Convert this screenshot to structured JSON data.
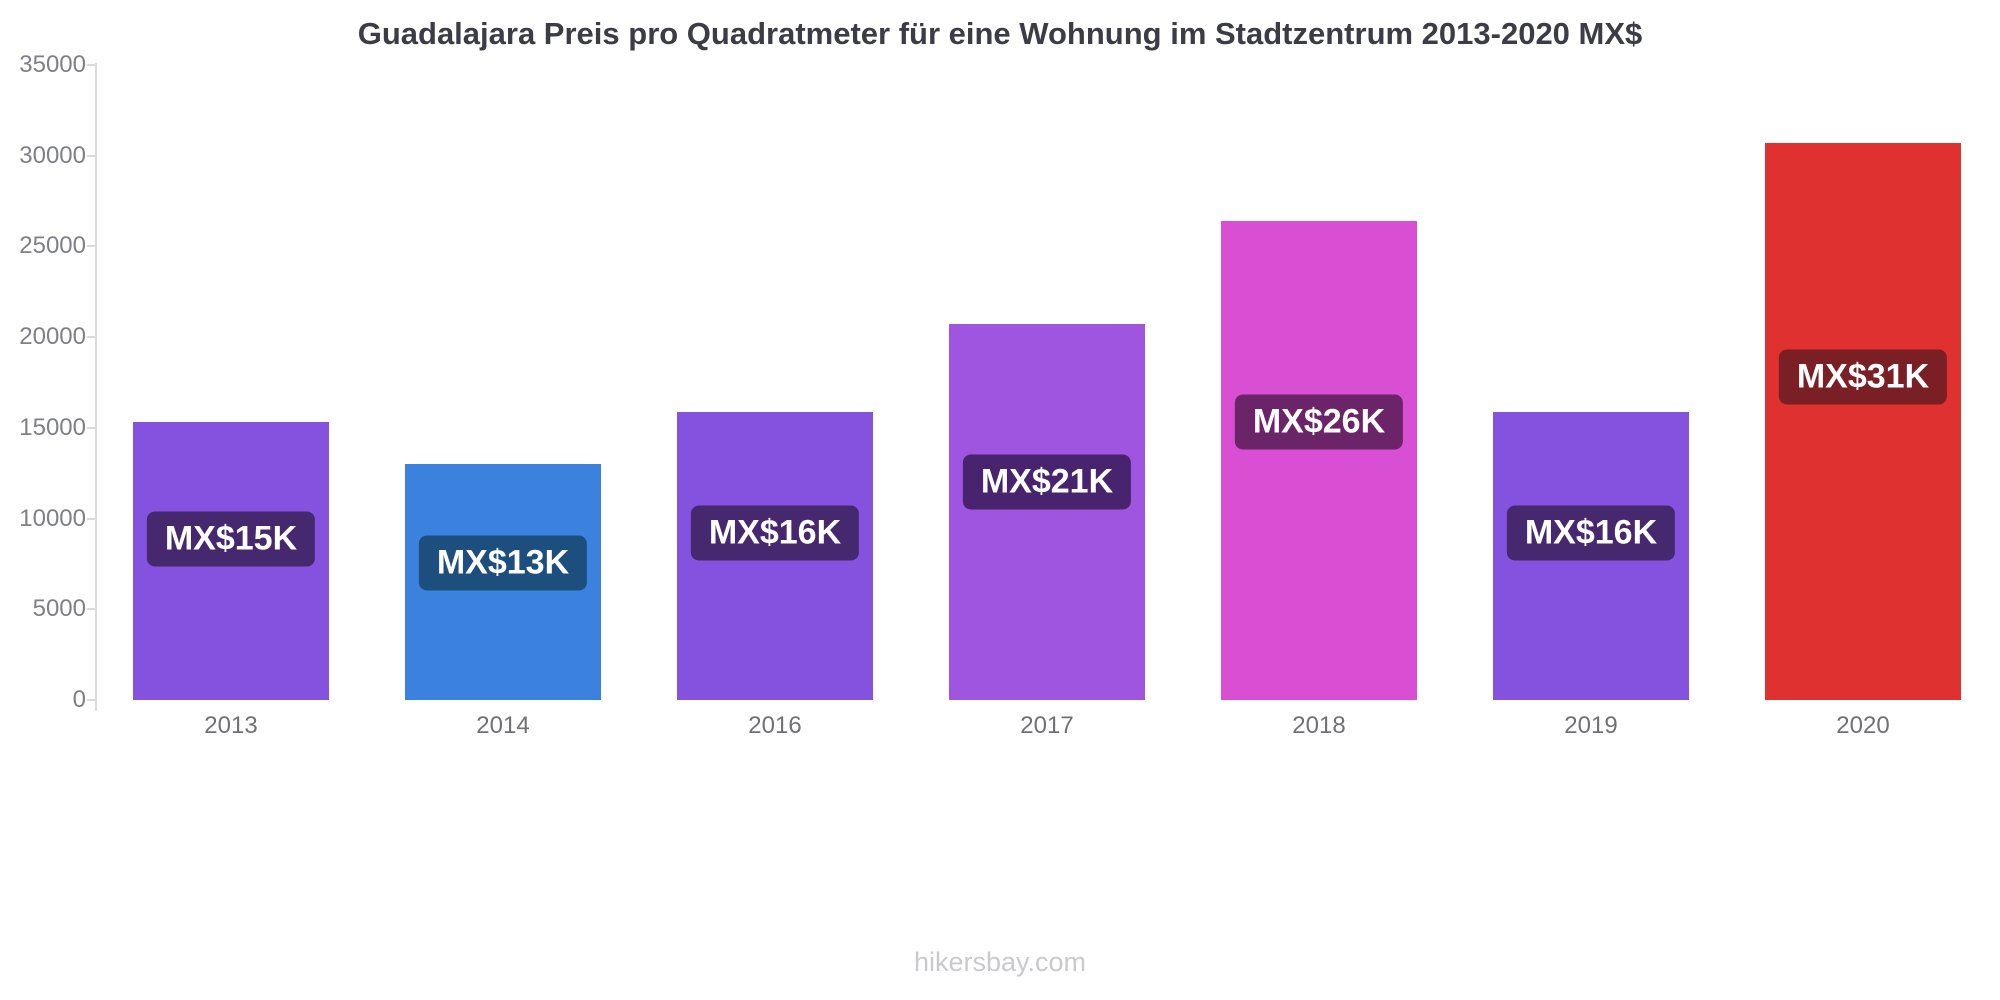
{
  "title": "Guadalajara Preis pro Quadratmeter für eine Wohnung im Stadtzentrum 2013-2020 MX$",
  "footer": "hikersbay.com",
  "chart_data": {
    "type": "bar",
    "title": "Guadalajara Preis pro Quadratmeter für eine Wohnung im Stadtzentrum 2013-2020 MX$",
    "xlabel": "",
    "ylabel": "",
    "categories": [
      "2013",
      "2014",
      "2016",
      "2017",
      "2018",
      "2019",
      "2020"
    ],
    "values": [
      15300,
      13000,
      15900,
      20700,
      26400,
      15900,
      30700
    ],
    "bar_labels": [
      "MX$15K",
      "MX$13K",
      "MX$16K",
      "MX$21K",
      "MX$26K",
      "MX$16K",
      "MX$31K"
    ],
    "bar_colors": [
      "#8552e0",
      "#3a82dd",
      "#8552e0",
      "#a055e0",
      "#d94fd4",
      "#8552e0",
      "#e03131"
    ],
    "label_bg_colors": [
      "#45286e",
      "#1d4f7e",
      "#45286e",
      "#48246e",
      "#6b2468",
      "#45286e",
      "#7a1f24"
    ],
    "ylim": [
      0,
      35000
    ],
    "yticks": [
      0,
      5000,
      10000,
      15000,
      20000,
      25000,
      30000,
      35000
    ],
    "grid": false,
    "legend": "none"
  }
}
